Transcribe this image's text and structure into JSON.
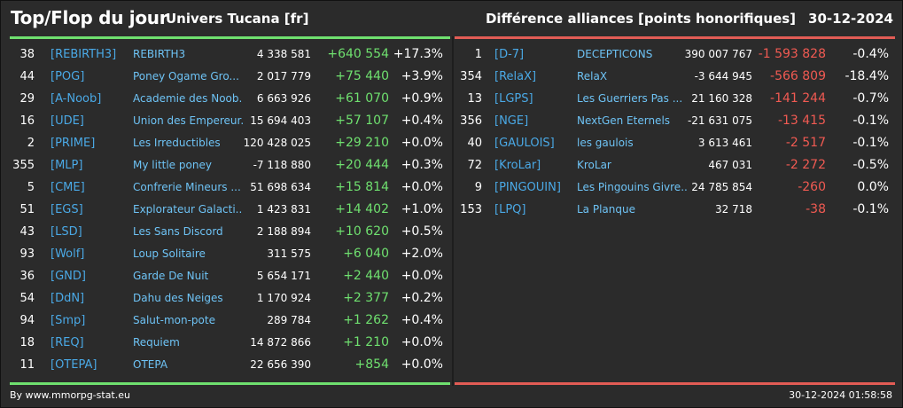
{
  "header": {
    "title": "Top/Flop du jour",
    "universe": "Univers Tucana [fr]",
    "subtitle": "Différence alliances [points honorifiques]",
    "date": "30-12-2024"
  },
  "colors": {
    "positive": "#6fe06f",
    "negative": "#e25c55",
    "tag": "#4aa9e6",
    "name": "#6ec3f5"
  },
  "top": [
    {
      "rank": "38",
      "tag": "[REBIRTH3]",
      "name": "REBIRTH3",
      "points": "4 338 581",
      "delta": "+640 554",
      "pct": "+17.3%"
    },
    {
      "rank": "44",
      "tag": "[POG]",
      "name": "Poney Ogame Gro...",
      "points": "2 017 779",
      "delta": "+75 440",
      "pct": "+3.9%"
    },
    {
      "rank": "29",
      "tag": "[A-Noob]",
      "name": "Academie des Noob...",
      "points": "6 663 926",
      "delta": "+61 070",
      "pct": "+0.9%"
    },
    {
      "rank": "16",
      "tag": "[UDE]",
      "name": "Union des Empereur...",
      "points": "15 694 403",
      "delta": "+57 107",
      "pct": "+0.4%"
    },
    {
      "rank": "2",
      "tag": "[PRIME]",
      "name": "Les Irreductibles",
      "points": "120 428 025",
      "delta": "+29 210",
      "pct": "+0.0%"
    },
    {
      "rank": "355",
      "tag": "[MLP]",
      "name": "My little poney",
      "points": "-7 118 880",
      "delta": "+20 444",
      "pct": "+0.3%"
    },
    {
      "rank": "5",
      "tag": "[CME]",
      "name": "Confrerie Mineurs ...",
      "points": "51 698 634",
      "delta": "+15 814",
      "pct": "+0.0%"
    },
    {
      "rank": "51",
      "tag": "[EGS]",
      "name": "Explorateur Galacti...",
      "points": "1 423 831",
      "delta": "+14 402",
      "pct": "+1.0%"
    },
    {
      "rank": "43",
      "tag": "[LSD]",
      "name": "Les Sans Discord",
      "points": "2 188 894",
      "delta": "+10 620",
      "pct": "+0.5%"
    },
    {
      "rank": "93",
      "tag": "[Wolf]",
      "name": "Loup Solitaire",
      "points": "311 575",
      "delta": "+6 040",
      "pct": "+2.0%"
    },
    {
      "rank": "36",
      "tag": "[GND]",
      "name": "Garde De Nuit",
      "points": "5 654 171",
      "delta": "+2 440",
      "pct": "+0.0%"
    },
    {
      "rank": "54",
      "tag": "[DdN]",
      "name": "Dahu des Neiges",
      "points": "1 170 924",
      "delta": "+2 377",
      "pct": "+0.2%"
    },
    {
      "rank": "94",
      "tag": "[Smp]",
      "name": "Salut-mon-pote",
      "points": "289 784",
      "delta": "+1 262",
      "pct": "+0.4%"
    },
    {
      "rank": "18",
      "tag": "[REQ]",
      "name": "Requiem",
      "points": "14 872 866",
      "delta": "+1 210",
      "pct": "+0.0%"
    },
    {
      "rank": "11",
      "tag": "[OTEPA]",
      "name": "OTEPA",
      "points": "22 656 390",
      "delta": "+854",
      "pct": "+0.0%"
    }
  ],
  "flop": [
    {
      "rank": "1",
      "tag": "[D-7]",
      "name": "DECEPTICONS",
      "points": "390 007 767",
      "delta": "-1 593 828",
      "pct": "-0.4%"
    },
    {
      "rank": "354",
      "tag": "[RelaX]",
      "name": "RelaX",
      "points": "-3 644 945",
      "delta": "-566 809",
      "pct": "-18.4%"
    },
    {
      "rank": "13",
      "tag": "[LGPS]",
      "name": "Les Guerriers Pas ...",
      "points": "21 160 328",
      "delta": "-141 244",
      "pct": "-0.7%"
    },
    {
      "rank": "356",
      "tag": "[NGE]",
      "name": "NextGen Eternels",
      "points": "-21 631 075",
      "delta": "-13 415",
      "pct": "-0.1%"
    },
    {
      "rank": "40",
      "tag": "[GAULOIS]",
      "name": "les gaulois",
      "points": "3 613 461",
      "delta": "-2 517",
      "pct": "-0.1%"
    },
    {
      "rank": "72",
      "tag": "[KroLar]",
      "name": "KroLar",
      "points": "467 031",
      "delta": "-2 272",
      "pct": "-0.5%"
    },
    {
      "rank": "9",
      "tag": "[PINGOUIN]",
      "name": "Les Pingouins Givre...",
      "points": "24 785 854",
      "delta": "-260",
      "pct": "0.0%"
    },
    {
      "rank": "153",
      "tag": "[LPQ]",
      "name": "La Planque",
      "points": "32 718",
      "delta": "-38",
      "pct": "-0.1%"
    }
  ],
  "footer": {
    "credit": "By www.mmorpg-stat.eu",
    "timestamp": "30-12-2024 01:58:58"
  }
}
